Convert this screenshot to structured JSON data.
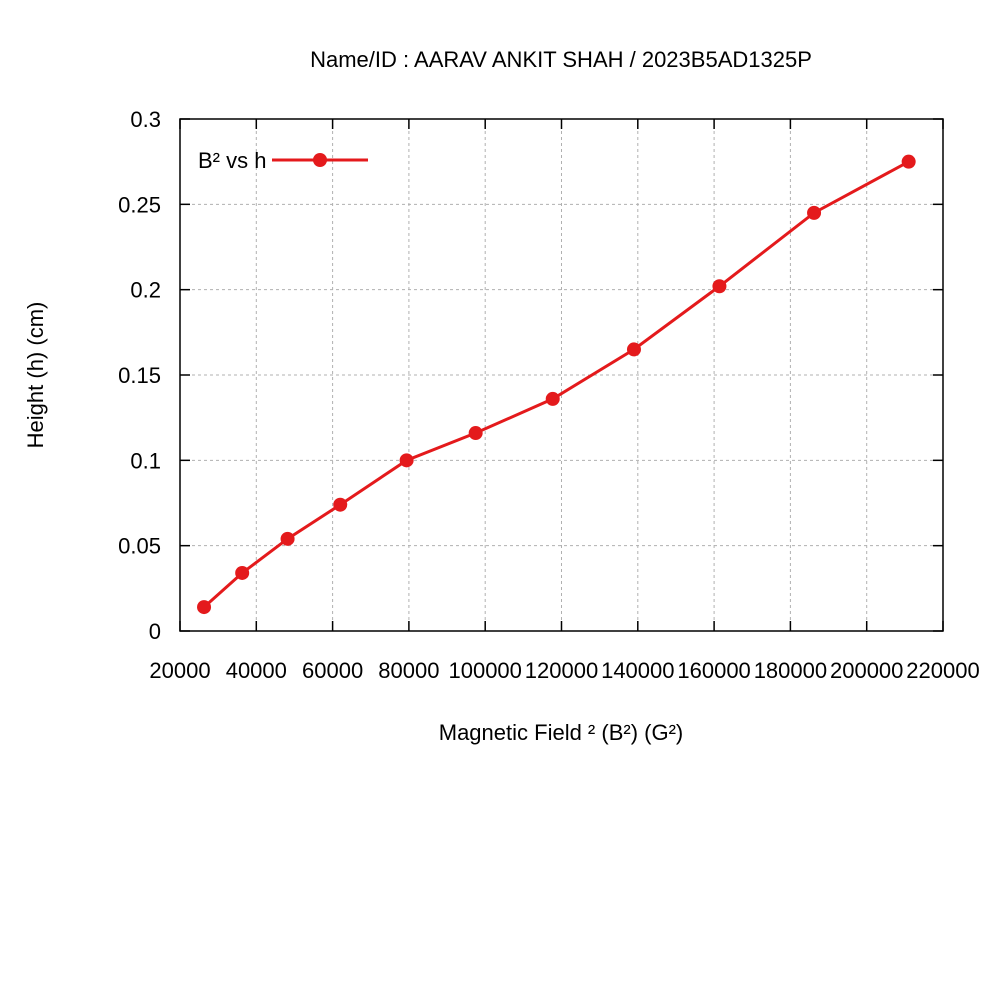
{
  "chart_data": {
    "type": "line",
    "title": "Name/ID : AARAV ANKIT SHAH / 2023B5AD1325P",
    "xlabel": "Magnetic Field ² (B²) (G²)",
    "ylabel": "Height (h) (cm)",
    "xlim": [
      20000,
      220000
    ],
    "ylim": [
      0,
      0.3
    ],
    "xticks": [
      20000,
      40000,
      60000,
      80000,
      100000,
      120000,
      140000,
      160000,
      180000,
      200000,
      220000
    ],
    "yticks": [
      0,
      0.05,
      0.1,
      0.15,
      0.2,
      0.25,
      0.3
    ],
    "xtick_labels": [
      "20000",
      "40000",
      "60000",
      "80000",
      "100000",
      "120000",
      "140000",
      "160000",
      "180000",
      "200000",
      "220000"
    ],
    "ytick_labels": [
      "0",
      "0.05",
      "0.1",
      "0.15",
      "0.2",
      "0.25",
      "0.3"
    ],
    "grid": true,
    "legend_position": "top-left",
    "series": [
      {
        "name": "B² vs h",
        "color": "#e41a1c",
        "marker": "circle",
        "x": [
          26300,
          36300,
          48200,
          62000,
          79400,
          97500,
          117700,
          139000,
          161400,
          186200,
          211000
        ],
        "y": [
          0.014,
          0.034,
          0.054,
          0.074,
          0.1,
          0.116,
          0.136,
          0.165,
          0.202,
          0.245,
          0.275
        ]
      }
    ]
  }
}
